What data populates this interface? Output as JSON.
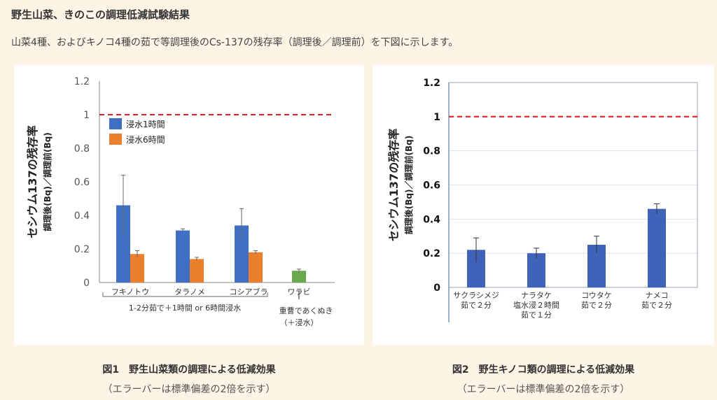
{
  "header": {
    "title": "野生山菜、きのこの調理低減試験結果",
    "description": "山菜4種、およびキノコ4種の茹で等調理後のCs-137の残存率（調理後／調理前）を下図に示します。"
  },
  "chart_data": [
    {
      "type": "bar",
      "ylabel_line1": "セシウム137の残存率",
      "ylabel_line2": "調理後(Bq)／調理前(Bq)",
      "ylim": [
        0,
        1.2
      ],
      "yticks": [
        "0",
        "0.2",
        "0.4",
        "0.6",
        "0.8",
        "1",
        "1.2"
      ],
      "reference_line": 1,
      "reference_color": "#e02020",
      "legend_position": "top-left",
      "categories": [
        "フキノトウ",
        "タラノメ",
        "コシアブラ",
        "ワラビ"
      ],
      "series": [
        {
          "name": "浸水1時間",
          "color": "#3f6fc4",
          "values": [
            0.46,
            0.31,
            0.34,
            null
          ],
          "errors": [
            0.18,
            0.01,
            0.1,
            null
          ]
        },
        {
          "name": "浸水6時間",
          "color": "#ec7f2e",
          "values": [
            0.17,
            0.14,
            0.18,
            null
          ],
          "errors": [
            0.02,
            0.01,
            0.01,
            null
          ]
        },
        {
          "name": "",
          "color": "#6aa84f",
          "values": [
            null,
            null,
            null,
            0.07
          ],
          "errors": [
            null,
            null,
            null,
            0.01
          ]
        }
      ],
      "group_note": "1-2分茹で＋1時間 or 6時間浸水",
      "warabi_note_line1": "重曹であくぬき",
      "warabi_note_line2": "（＋浸水）",
      "caption": "図1　野生山菜類の調理による低減効果",
      "caption_note": "（エラーバーは標準偏差の2倍を示す）"
    },
    {
      "type": "bar",
      "ylabel_line1": "セシウム137の残存率",
      "ylabel_line2": "調理後(Bq)／調理前(Bq)",
      "ylim": [
        0,
        1.2
      ],
      "yticks": [
        "0",
        "0.2",
        "0.4",
        "0.6",
        "0.8",
        "1",
        "1.2"
      ],
      "reference_line": 1,
      "reference_color": "#e02020",
      "bar_color": "#3f63b8",
      "grid": true,
      "categories": [
        [
          "サクラシメジ",
          "茹で２分"
        ],
        [
          "ナラタケ",
          "塩水浸２時間",
          "茹で１分"
        ],
        [
          "コウタケ",
          "茹で２分"
        ],
        [
          "ナメコ",
          "茹で２分"
        ]
      ],
      "values": [
        0.22,
        0.2,
        0.25,
        0.46
      ],
      "errors": [
        0.07,
        0.03,
        0.05,
        0.03
      ],
      "caption": "図2　野生キノコ類の調理による低減効果",
      "caption_note": "（エラーバーは標準偏差の2倍を示す）"
    }
  ]
}
